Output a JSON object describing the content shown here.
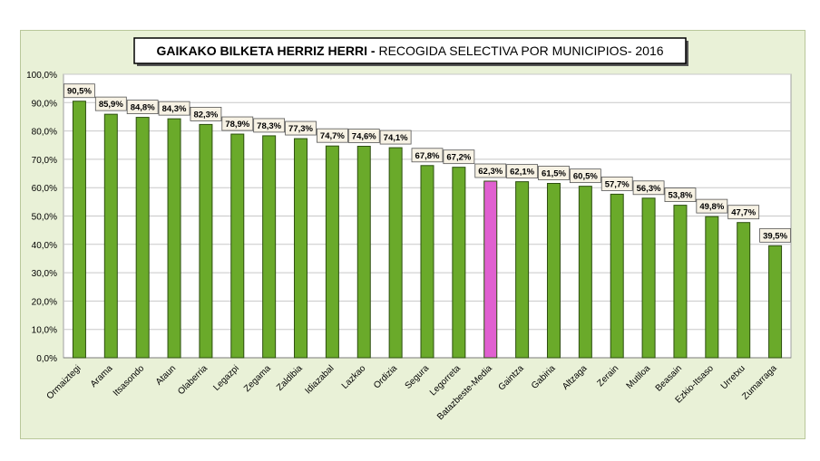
{
  "chart_data": {
    "type": "bar",
    "title_bold": "GAIKAKO BILKETA HERRIZ HERRI -",
    "title_rest": " RECOGIDA SELECTIVA POR MUNICIPIOS- 2016",
    "xlabel": "",
    "ylabel": "",
    "ylim": [
      0,
      100
    ],
    "y_ticks": [
      "0,0%",
      "10,0%",
      "20,0%",
      "30,0%",
      "40,0%",
      "50,0%",
      "60,0%",
      "70,0%",
      "80,0%",
      "90,0%",
      "100,0%"
    ],
    "grid": true,
    "legend": "none",
    "categories": [
      "Ormaiztegi",
      "Arama",
      "Itsasondo",
      "Ataun",
      "Olaberria",
      "Legazpi",
      "Zegama",
      "Zaldibia",
      "Idiazabal",
      "Lazkao",
      "Ordizia",
      "Segura",
      "Legorreta",
      "Batazbeste-Media",
      "Gaintza",
      "Gabiria",
      "Altzaga",
      "Zerain",
      "Mutiloa",
      "Beasain",
      "Ezkio-Itsaso",
      "Urretxu",
      "Zumarraga"
    ],
    "values": [
      90.5,
      85.9,
      84.8,
      84.3,
      82.3,
      78.9,
      78.3,
      77.3,
      74.7,
      74.6,
      74.1,
      67.8,
      67.2,
      62.3,
      62.1,
      61.5,
      60.5,
      57.7,
      56.3,
      53.8,
      49.8,
      47.7,
      39.5
    ],
    "value_labels": [
      "90,5%",
      "85,9%",
      "84,8%",
      "84,3%",
      "82,3%",
      "78,9%",
      "78,3%",
      "77,3%",
      "74,7%",
      "74,6%",
      "74,1%",
      "67,8%",
      "67,2%",
      "62,3%",
      "62,1%",
      "61,5%",
      "60,5%",
      "57,7%",
      "56,3%",
      "53,8%",
      "49,8%",
      "47,7%",
      "39,5%"
    ],
    "highlight": "Batazbeste-Media",
    "colors": {
      "bar": "#6aaa2a",
      "highlight": "#e060d0",
      "bar_edge": "#2d4f10",
      "plot_bg": "#ffffff",
      "chart_bg": "#e9f1d7",
      "grid": "#c8c8c8"
    }
  }
}
